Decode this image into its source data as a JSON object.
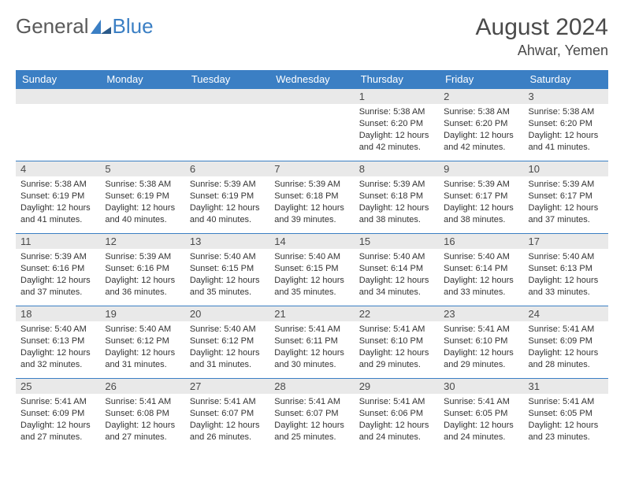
{
  "logo": {
    "text1": "General",
    "text2": "Blue"
  },
  "title": "August 2024",
  "location": "Ahwar, Yemen",
  "colors": {
    "header_bg": "#3b7fc4",
    "header_fg": "#ffffff",
    "daynum_bg": "#e9e9e9",
    "border": "#3b7fc4",
    "text": "#333333",
    "title": "#4a4a4a"
  },
  "daynames": [
    "Sunday",
    "Monday",
    "Tuesday",
    "Wednesday",
    "Thursday",
    "Friday",
    "Saturday"
  ],
  "weeks": [
    [
      null,
      null,
      null,
      null,
      {
        "n": "1",
        "sr": "5:38 AM",
        "ss": "6:20 PM",
        "dl": "12 hours and 42 minutes."
      },
      {
        "n": "2",
        "sr": "5:38 AM",
        "ss": "6:20 PM",
        "dl": "12 hours and 42 minutes."
      },
      {
        "n": "3",
        "sr": "5:38 AM",
        "ss": "6:20 PM",
        "dl": "12 hours and 41 minutes."
      }
    ],
    [
      {
        "n": "4",
        "sr": "5:38 AM",
        "ss": "6:19 PM",
        "dl": "12 hours and 41 minutes."
      },
      {
        "n": "5",
        "sr": "5:38 AM",
        "ss": "6:19 PM",
        "dl": "12 hours and 40 minutes."
      },
      {
        "n": "6",
        "sr": "5:39 AM",
        "ss": "6:19 PM",
        "dl": "12 hours and 40 minutes."
      },
      {
        "n": "7",
        "sr": "5:39 AM",
        "ss": "6:18 PM",
        "dl": "12 hours and 39 minutes."
      },
      {
        "n": "8",
        "sr": "5:39 AM",
        "ss": "6:18 PM",
        "dl": "12 hours and 38 minutes."
      },
      {
        "n": "9",
        "sr": "5:39 AM",
        "ss": "6:17 PM",
        "dl": "12 hours and 38 minutes."
      },
      {
        "n": "10",
        "sr": "5:39 AM",
        "ss": "6:17 PM",
        "dl": "12 hours and 37 minutes."
      }
    ],
    [
      {
        "n": "11",
        "sr": "5:39 AM",
        "ss": "6:16 PM",
        "dl": "12 hours and 37 minutes."
      },
      {
        "n": "12",
        "sr": "5:39 AM",
        "ss": "6:16 PM",
        "dl": "12 hours and 36 minutes."
      },
      {
        "n": "13",
        "sr": "5:40 AM",
        "ss": "6:15 PM",
        "dl": "12 hours and 35 minutes."
      },
      {
        "n": "14",
        "sr": "5:40 AM",
        "ss": "6:15 PM",
        "dl": "12 hours and 35 minutes."
      },
      {
        "n": "15",
        "sr": "5:40 AM",
        "ss": "6:14 PM",
        "dl": "12 hours and 34 minutes."
      },
      {
        "n": "16",
        "sr": "5:40 AM",
        "ss": "6:14 PM",
        "dl": "12 hours and 33 minutes."
      },
      {
        "n": "17",
        "sr": "5:40 AM",
        "ss": "6:13 PM",
        "dl": "12 hours and 33 minutes."
      }
    ],
    [
      {
        "n": "18",
        "sr": "5:40 AM",
        "ss": "6:13 PM",
        "dl": "12 hours and 32 minutes."
      },
      {
        "n": "19",
        "sr": "5:40 AM",
        "ss": "6:12 PM",
        "dl": "12 hours and 31 minutes."
      },
      {
        "n": "20",
        "sr": "5:40 AM",
        "ss": "6:12 PM",
        "dl": "12 hours and 31 minutes."
      },
      {
        "n": "21",
        "sr": "5:41 AM",
        "ss": "6:11 PM",
        "dl": "12 hours and 30 minutes."
      },
      {
        "n": "22",
        "sr": "5:41 AM",
        "ss": "6:10 PM",
        "dl": "12 hours and 29 minutes."
      },
      {
        "n": "23",
        "sr": "5:41 AM",
        "ss": "6:10 PM",
        "dl": "12 hours and 29 minutes."
      },
      {
        "n": "24",
        "sr": "5:41 AM",
        "ss": "6:09 PM",
        "dl": "12 hours and 28 minutes."
      }
    ],
    [
      {
        "n": "25",
        "sr": "5:41 AM",
        "ss": "6:09 PM",
        "dl": "12 hours and 27 minutes."
      },
      {
        "n": "26",
        "sr": "5:41 AM",
        "ss": "6:08 PM",
        "dl": "12 hours and 27 minutes."
      },
      {
        "n": "27",
        "sr": "5:41 AM",
        "ss": "6:07 PM",
        "dl": "12 hours and 26 minutes."
      },
      {
        "n": "28",
        "sr": "5:41 AM",
        "ss": "6:07 PM",
        "dl": "12 hours and 25 minutes."
      },
      {
        "n": "29",
        "sr": "5:41 AM",
        "ss": "6:06 PM",
        "dl": "12 hours and 24 minutes."
      },
      {
        "n": "30",
        "sr": "5:41 AM",
        "ss": "6:05 PM",
        "dl": "12 hours and 24 minutes."
      },
      {
        "n": "31",
        "sr": "5:41 AM",
        "ss": "6:05 PM",
        "dl": "12 hours and 23 minutes."
      }
    ]
  ],
  "labels": {
    "sunrise": "Sunrise:",
    "sunset": "Sunset:",
    "daylight": "Daylight:"
  }
}
